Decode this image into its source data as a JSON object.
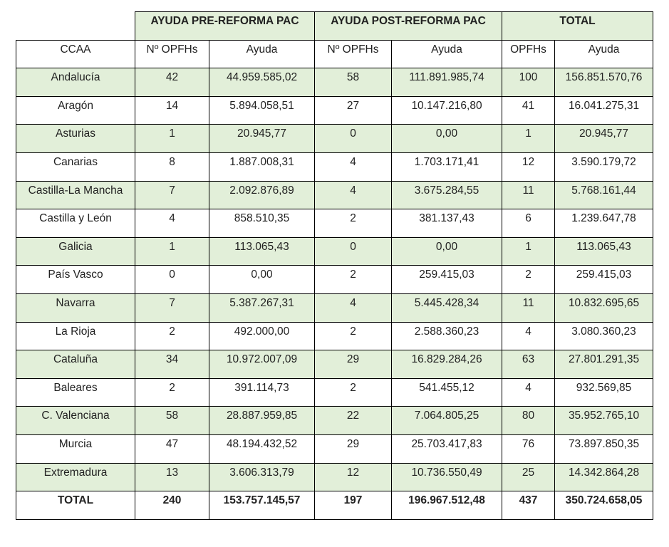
{
  "header": {
    "groups": [
      "AYUDA PRE-REFORMA PAC",
      "AYUDA POST-REFORMA PAC",
      "TOTAL"
    ],
    "columns": [
      "CCAA",
      "Nº OPFHs",
      "Ayuda",
      "Nº OPFHs",
      "Ayuda",
      "OPFHs",
      "Ayuda"
    ]
  },
  "table": {
    "rows": [
      [
        "Andalucía",
        "42",
        "44.959.585,02",
        "58",
        "111.891.985,74",
        "100",
        "156.851.570,76"
      ],
      [
        "Aragón",
        "14",
        "5.894.058,51",
        "27",
        "10.147.216,80",
        "41",
        "16.041.275,31"
      ],
      [
        "Asturias",
        "1",
        "20.945,77",
        "0",
        "0,00",
        "1",
        "20.945,77"
      ],
      [
        "Canarias",
        "8",
        "1.887.008,31",
        "4",
        "1.703.171,41",
        "12",
        "3.590.179,72"
      ],
      [
        "Castilla-La Mancha",
        "7",
        "2.092.876,89",
        "4",
        "3.675.284,55",
        "11",
        "5.768.161,44"
      ],
      [
        "Castilla y León",
        "4",
        "858.510,35",
        "2",
        "381.137,43",
        "6",
        "1.239.647,78"
      ],
      [
        "Galicia",
        "1",
        "113.065,43",
        "0",
        "0,00",
        "1",
        "113.065,43"
      ],
      [
        "País Vasco",
        "0",
        "0,00",
        "2",
        "259.415,03",
        "2",
        "259.415,03"
      ],
      [
        "Navarra",
        "7",
        "5.387.267,31",
        "4",
        "5.445.428,34",
        "11",
        "10.832.695,65"
      ],
      [
        "La Rioja",
        "2",
        "492.000,00",
        "2",
        "2.588.360,23",
        "4",
        "3.080.360,23"
      ],
      [
        "Cataluña",
        "34",
        "10.972.007,09",
        "29",
        "16.829.284,26",
        "63",
        "27.801.291,35"
      ],
      [
        "Baleares",
        "2",
        "391.114,73",
        "2",
        "541.455,12",
        "4",
        "932.569,85"
      ],
      [
        "C. Valenciana",
        "58",
        "28.887.959,85",
        "22",
        "7.064.805,25",
        "80",
        "35.952.765,10"
      ],
      [
        "Murcia",
        "47",
        "48.194.432,52",
        "29",
        "25.703.417,83",
        "76",
        "73.897.850,35"
      ],
      [
        "Extremadura",
        "13",
        "3.606.313,79",
        "12",
        "10.736.550,49",
        "25",
        "14.342.864,28"
      ]
    ],
    "total": [
      "TOTAL",
      "240",
      "153.757.145,57",
      "197",
      "196.967.512,48",
      "437",
      "350.724.658,05"
    ]
  }
}
